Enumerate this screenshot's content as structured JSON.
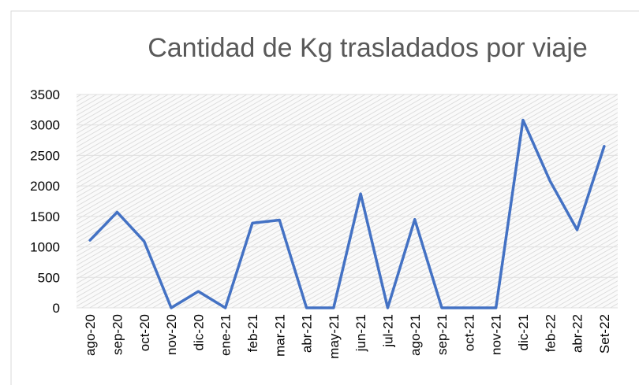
{
  "chart_data": {
    "type": "line",
    "title": "Cantidad de Kg trasladados por viaje",
    "categories": [
      "ago-20",
      "sep-20",
      "oct-20",
      "nov-20",
      "dic-20",
      "ene-21",
      "feb-21",
      "mar-21",
      "abr-21",
      "may-21",
      "jun-21",
      "jul-21",
      "ago-21",
      "sep-21",
      "oct-21",
      "nov-21",
      "dic-21",
      "feb-22",
      "abr-22",
      "Set-22"
    ],
    "series": [
      {
        "name": "Kg",
        "color": "#4472c4",
        "values": [
          1110,
          1570,
          1090,
          0,
          270,
          0,
          1390,
          1440,
          0,
          0,
          1870,
          0,
          1450,
          0,
          0,
          0,
          3080,
          2080,
          1280,
          2650
        ]
      }
    ],
    "ylim": [
      0,
      3500
    ],
    "yticks": [
      0,
      500,
      1000,
      1500,
      2000,
      2500,
      3000,
      3500
    ],
    "grid": true
  }
}
